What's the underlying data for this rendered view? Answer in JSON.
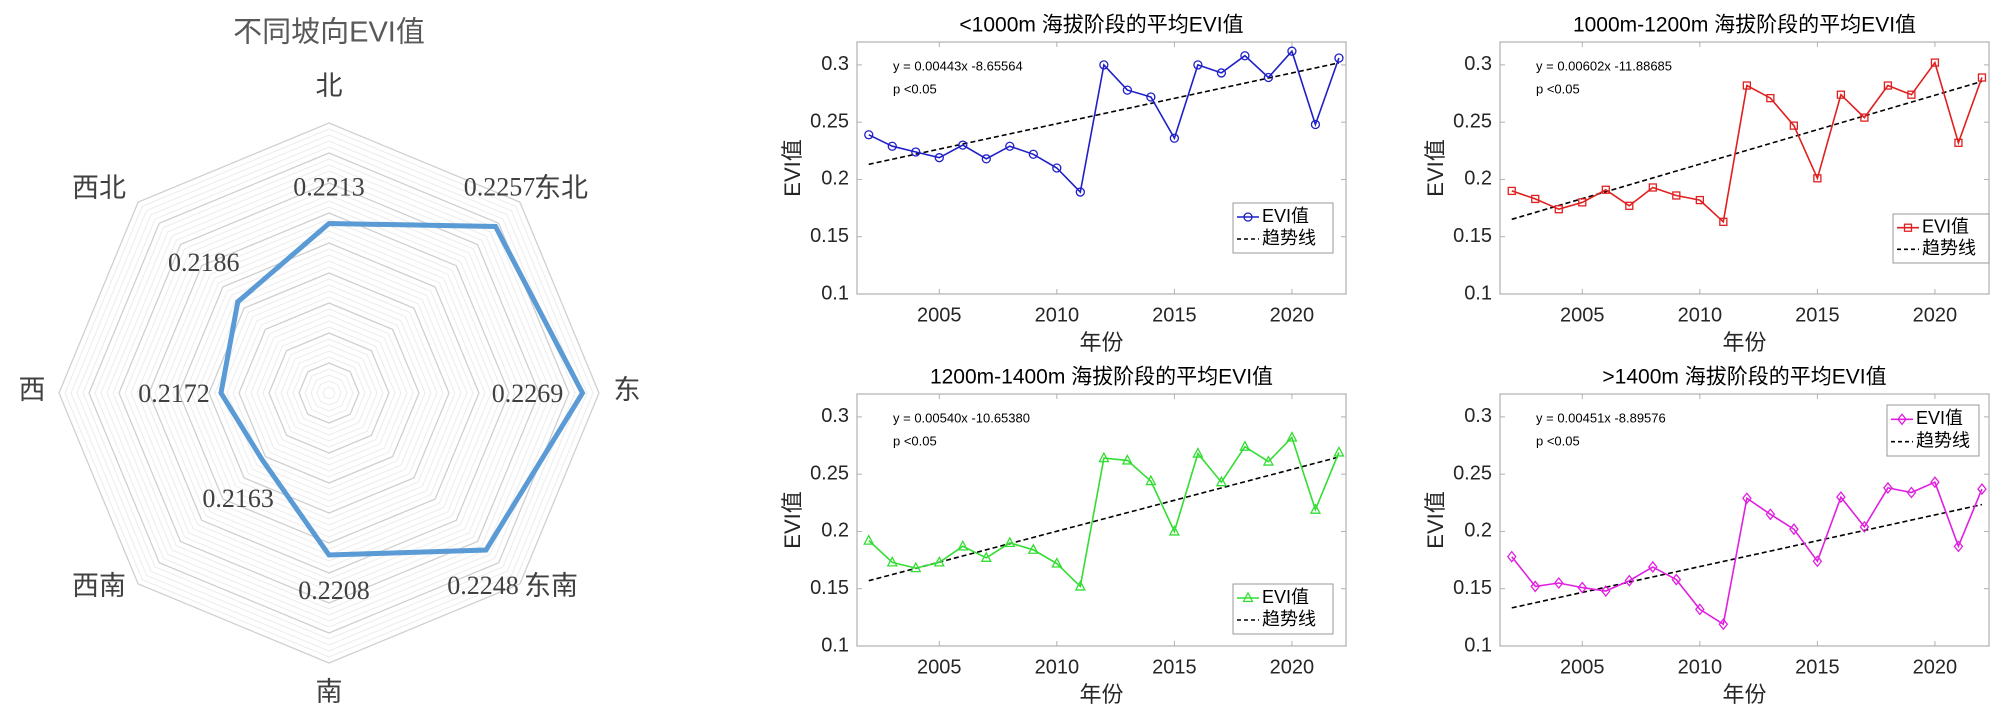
{
  "chart_data": [
    {
      "type": "radar",
      "title": "不同坡向EVI值",
      "categories": [
        "北",
        "东北",
        "东",
        "东南",
        "南",
        "西南",
        "西",
        "西北"
      ],
      "values": [
        0.2213,
        0.2257,
        0.2269,
        0.2248,
        0.2208,
        0.2163,
        0.2172,
        0.2186
      ],
      "value_labels": [
        "0.2213",
        "0.2257",
        "0.2269",
        "0.2248",
        "0.2208",
        "0.2163",
        "0.2172",
        "0.2186"
      ],
      "range": [
        0.21,
        0.228
      ],
      "color": "#5b9bd5",
      "grid": true
    },
    {
      "type": "line",
      "title": "<1000m 海拔阶段的平均EVI值",
      "xlabel": "年份",
      "ylabel": "EVI值",
      "xlim": [
        2001.5,
        2022.3
      ],
      "ylim": [
        0.1,
        0.32
      ],
      "xticks": [
        "2005",
        "2010",
        "2015",
        "2020"
      ],
      "yticks": [
        "0.1",
        "0.15",
        "0.2",
        "0.25",
        "0.3"
      ],
      "x": [
        2002,
        2003,
        2004,
        2005,
        2006,
        2007,
        2008,
        2009,
        2010,
        2011,
        2012,
        2013,
        2014,
        2015,
        2016,
        2017,
        2018,
        2019,
        2020,
        2021,
        2022
      ],
      "series": [
        {
          "name": "EVI值",
          "marker": "circle",
          "color": "#1f1fc8",
          "values": [
            0.239,
            0.229,
            0.224,
            0.219,
            0.23,
            0.218,
            0.229,
            0.222,
            0.21,
            0.189,
            0.3,
            0.278,
            0.272,
            0.236,
            0.3,
            0.293,
            0.308,
            0.289,
            0.312,
            0.248,
            0.306
          ]
        }
      ],
      "trend": {
        "name": "趋势线",
        "slope": 0.00443,
        "intercept": -8.65564
      },
      "equation": "y = 0.00443x -8.65564",
      "pvalue": "p <0.05",
      "legend": "bottom-right"
    },
    {
      "type": "line",
      "title": "1000m-1200m 海拔阶段的平均EVI值",
      "xlabel": "年份",
      "ylabel": "EVI值",
      "xlim": [
        2001.5,
        2022.3
      ],
      "ylim": [
        0.1,
        0.32
      ],
      "xticks": [
        "2005",
        "2010",
        "2015",
        "2020"
      ],
      "yticks": [
        "0.1",
        "0.15",
        "0.2",
        "0.25",
        "0.3"
      ],
      "x": [
        2002,
        2003,
        2004,
        2005,
        2006,
        2007,
        2008,
        2009,
        2010,
        2011,
        2012,
        2013,
        2014,
        2015,
        2016,
        2017,
        2018,
        2019,
        2020,
        2021,
        2022
      ],
      "series": [
        {
          "name": "EVI值",
          "marker": "square",
          "color": "#e0201f",
          "values": [
            0.19,
            0.183,
            0.174,
            0.18,
            0.191,
            0.177,
            0.193,
            0.186,
            0.182,
            0.163,
            0.282,
            0.271,
            0.247,
            0.201,
            0.274,
            0.254,
            0.282,
            0.274,
            0.302,
            0.232,
            0.289
          ]
        }
      ],
      "trend": {
        "name": "趋势线",
        "slope": 0.00602,
        "intercept": -11.88685
      },
      "equation": "y = 0.00602x -11.88685",
      "pvalue": "p <0.05",
      "legend": "bottom-right"
    },
    {
      "type": "line",
      "title": "1200m-1400m 海拔阶段的平均EVI值",
      "xlabel": "年份",
      "ylabel": "EVI值",
      "xlim": [
        2001.5,
        2022.3
      ],
      "ylim": [
        0.1,
        0.32
      ],
      "xticks": [
        "2005",
        "2010",
        "2015",
        "2020"
      ],
      "yticks": [
        "0.1",
        "0.15",
        "0.2",
        "0.25",
        "0.3"
      ],
      "x": [
        2002,
        2003,
        2004,
        2005,
        2006,
        2007,
        2008,
        2009,
        2010,
        2011,
        2012,
        2013,
        2014,
        2015,
        2016,
        2017,
        2018,
        2019,
        2020,
        2021,
        2022
      ],
      "series": [
        {
          "name": "EVI值",
          "marker": "triangle",
          "color": "#33dd33",
          "values": [
            0.192,
            0.173,
            0.168,
            0.173,
            0.187,
            0.177,
            0.19,
            0.184,
            0.172,
            0.152,
            0.264,
            0.262,
            0.244,
            0.2,
            0.268,
            0.243,
            0.274,
            0.261,
            0.282,
            0.219,
            0.269
          ]
        }
      ],
      "trend": {
        "name": "趋势线",
        "slope": 0.0054,
        "intercept": -10.6538
      },
      "equation": "y = 0.00540x -10.65380",
      "pvalue": "p <0.05",
      "legend": "bottom-right"
    },
    {
      "type": "line",
      "title": ">1400m 海拔阶段的平均EVI值",
      "xlabel": "年份",
      "ylabel": "EVI值",
      "xlim": [
        2001.5,
        2022.3
      ],
      "ylim": [
        0.1,
        0.32
      ],
      "xticks": [
        "2005",
        "2010",
        "2015",
        "2020"
      ],
      "yticks": [
        "0.1",
        "0.15",
        "0.2",
        "0.25",
        "0.3"
      ],
      "x": [
        2002,
        2003,
        2004,
        2005,
        2006,
        2007,
        2008,
        2009,
        2010,
        2011,
        2012,
        2013,
        2014,
        2015,
        2016,
        2017,
        2018,
        2019,
        2020,
        2021,
        2022
      ],
      "series": [
        {
          "name": "EVI值",
          "marker": "diamond",
          "color": "#e020e0",
          "values": [
            0.178,
            0.152,
            0.155,
            0.151,
            0.148,
            0.157,
            0.169,
            0.158,
            0.132,
            0.119,
            0.229,
            0.215,
            0.202,
            0.174,
            0.23,
            0.204,
            0.238,
            0.234,
            0.243,
            0.187,
            0.237
          ]
        }
      ],
      "trend": {
        "name": "趋势线",
        "slope": 0.00451,
        "intercept": -8.89576
      },
      "equation": "y = 0.00451x -8.89576",
      "pvalue": "p <0.05",
      "legend": "top-right"
    }
  ]
}
